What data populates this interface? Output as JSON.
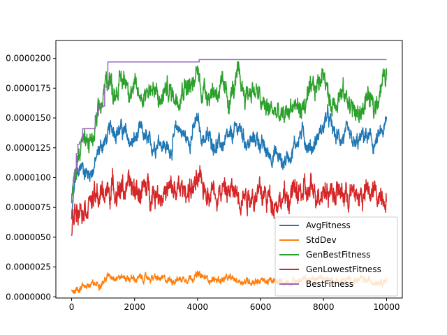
{
  "chart_data": {
    "type": "line",
    "title": "",
    "xlabel": "",
    "ylabel": "",
    "xlim": [
      -500,
      10500
    ],
    "ylim": [
      -1e-07,
      2.15e-05
    ],
    "x_ticks": [
      0,
      2000,
      4000,
      6000,
      8000,
      10000
    ],
    "x_tick_labels": [
      "0",
      "2000",
      "4000",
      "6000",
      "8000",
      "10000"
    ],
    "y_ticks": [
      0.0,
      2.5e-06,
      5e-06,
      7.5e-06,
      1e-05,
      1.25e-05,
      1.5e-05,
      1.75e-05,
      2e-05
    ],
    "y_tick_labels": [
      "0.0000000",
      "0.0000025",
      "0.0000050",
      "0.0000075",
      "0.0000100",
      "0.0000125",
      "0.0000150",
      "0.0000175",
      "0.0000200"
    ],
    "grid": false,
    "legend_position": "lower-right",
    "series": [
      {
        "name": "AvgFitness",
        "color": "#1f77b4",
        "noise": 6e-07,
        "x": [
          0,
          100,
          200,
          300,
          400,
          500,
          700,
          900,
          1100,
          1300,
          1600,
          1900,
          2200,
          2500,
          2800,
          3100,
          3400,
          3700,
          4000,
          4100,
          4400,
          4700,
          5000,
          5300,
          5600,
          5900,
          6200,
          6500,
          6700,
          7000,
          7300,
          7600,
          8000,
          8100,
          8400,
          8700,
          9000,
          9300,
          9600,
          9900,
          10000
        ],
        "values": [
          6.5e-06,
          9.5e-06,
          1.02e-05,
          1.1e-05,
          1.08e-05,
          1.03e-05,
          1.08e-05,
          1.25e-05,
          1.32e-05,
          1.42e-05,
          1.4e-05,
          1.28e-05,
          1.38e-05,
          1.25e-05,
          1.33e-05,
          1.22e-05,
          1.43e-05,
          1.3e-05,
          1.48e-05,
          1.35e-05,
          1.32e-05,
          1.27e-05,
          1.3e-05,
          1.43e-05,
          1.28e-05,
          1.33e-05,
          1.2e-05,
          1.2e-05,
          1.12e-05,
          1.23e-05,
          1.38e-05,
          1.24e-05,
          1.43e-05,
          1.52e-05,
          1.33e-05,
          1.35e-05,
          1.25e-05,
          1.36e-05,
          1.27e-05,
          1.38e-05,
          1.45e-05
        ]
      },
      {
        "name": "StdDev",
        "color": "#ff7f0e",
        "noise": 2.5e-07,
        "x": [
          0,
          200,
          400,
          600,
          800,
          1000,
          1200,
          1500,
          2000,
          2500,
          3000,
          3500,
          4000,
          4200,
          4600,
          5000,
          5500,
          6000,
          6500,
          7000,
          7500,
          8000,
          8500,
          9000,
          9500,
          10000
        ],
        "values": [
          5e-07,
          7e-07,
          1e-06,
          9e-07,
          1.1e-06,
          1.3e-06,
          1.8e-06,
          1.7e-06,
          1.5e-06,
          1.6e-06,
          1.4e-06,
          1.5e-06,
          1.8e-06,
          1.6e-06,
          1.4e-06,
          1.5e-06,
          1.3e-06,
          1.4e-06,
          1.2e-06,
          1.3e-06,
          1.4e-06,
          1.6e-06,
          1.3e-06,
          1.4e-06,
          1.3e-06,
          1.5e-06
        ]
      },
      {
        "name": "GenBestFitness",
        "color": "#2ca02c",
        "noise": 8e-07,
        "x": [
          0,
          100,
          200,
          300,
          400,
          500,
          600,
          700,
          800,
          1000,
          1100,
          1200,
          1300,
          1500,
          1700,
          2000,
          2200,
          2500,
          2800,
          3000,
          3300,
          3600,
          3900,
          4000,
          4100,
          4400,
          4700,
          5000,
          5300,
          5500,
          5800,
          6100,
          6400,
          6700,
          7000,
          7300,
          7600,
          7900,
          8000,
          8200,
          8500,
          8800,
          9100,
          9400,
          9600,
          9800,
          10000
        ],
        "values": [
          8e-06,
          1e-05,
          1.15e-05,
          1.35e-05,
          1.3e-05,
          1.25e-05,
          1.32e-05,
          1.3e-05,
          1.45e-05,
          1.65e-05,
          1.8e-05,
          1.88e-05,
          1.72e-05,
          1.78e-05,
          1.83e-05,
          1.72e-05,
          1.68e-05,
          1.77e-05,
          1.62e-05,
          1.75e-05,
          1.68e-05,
          1.8e-05,
          1.75e-05,
          1.93e-05,
          1.75e-05,
          1.72e-05,
          1.75e-05,
          1.65e-05,
          1.83e-05,
          1.7e-05,
          1.75e-05,
          1.58e-05,
          1.57e-05,
          1.48e-05,
          1.62e-05,
          1.57e-05,
          1.68e-05,
          1.82e-05,
          1.95e-05,
          1.6e-05,
          1.72e-05,
          1.65e-05,
          1.5e-05,
          1.68e-05,
          1.55e-05,
          1.78e-05,
          1.85e-05
        ]
      },
      {
        "name": "GenLowestFitness",
        "color": "#d62728",
        "noise": 9e-07,
        "x": [
          0,
          100,
          200,
          400,
          600,
          800,
          1000,
          1200,
          1500,
          2000,
          2500,
          3000,
          3500,
          4000,
          4500,
          5000,
          5500,
          6000,
          6500,
          6800,
          7000,
          7500,
          8000,
          8500,
          9000,
          9500,
          10000
        ],
        "values": [
          5.2e-06,
          7.5e-06,
          8e-06,
          7.8e-06,
          8.2e-06,
          8.2e-06,
          8.6e-06,
          9e-06,
          9.2e-06,
          8.9e-06,
          9e-06,
          8.7e-06,
          8.9e-06,
          9.3e-06,
          9e-06,
          8.8e-06,
          8.7e-06,
          8.5e-06,
          8.2e-06,
          8.1e-06,
          8.7e-06,
          8.6e-06,
          9.2e-06,
          8.7e-06,
          8.5e-06,
          8.6e-06,
          8.8e-06
        ]
      },
      {
        "name": "BestFitness",
        "color": "#9467bd",
        "step": true,
        "x": [
          0,
          50,
          100,
          150,
          200,
          250,
          350,
          750,
          850,
          1050,
          1150,
          4050,
          8000,
          10000
        ],
        "values": [
          8e-06,
          9.8e-06,
          1.05e-05,
          1.2e-05,
          1.28e-05,
          1.3e-05,
          1.41e-05,
          1.52e-05,
          1.6e-05,
          1.76e-05,
          1.97e-05,
          1.99e-05,
          1.99e-05,
          1.99e-05
        ]
      }
    ]
  }
}
